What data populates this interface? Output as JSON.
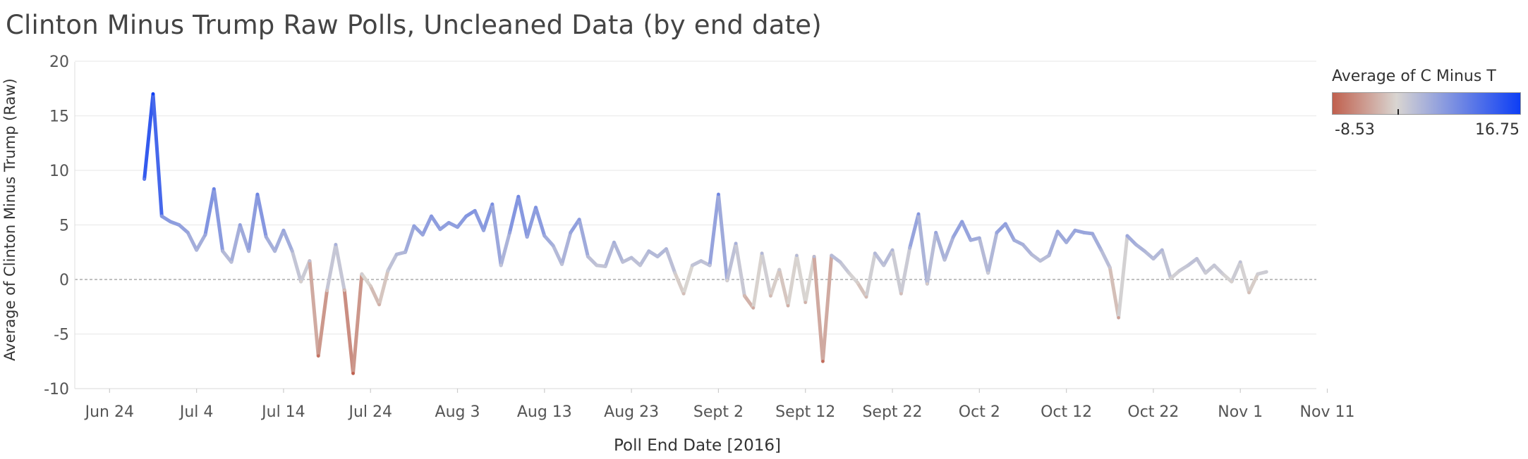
{
  "title": "Clinton Minus Trump Raw Polls, Uncleaned Data (by end date)",
  "legend": {
    "title": "Average of C Minus T",
    "min_label": "-8.53",
    "max_label": "16.75",
    "colors": {
      "negative": "#c0604e",
      "neutral": "#d9d5d1",
      "positive": "#0d3ef5"
    }
  },
  "chart_data": {
    "type": "line",
    "title": "Clinton Minus Trump Raw Polls, Uncleaned Data (by end date)",
    "xlabel": "Poll End Date [2016]",
    "ylabel": "Average of Clinton Minus Trump (Raw)",
    "x_tick_labels": [
      "Jun 24",
      "Jul 4",
      "Jul 14",
      "Jul 24",
      "Aug 3",
      "Aug 13",
      "Aug 23",
      "Sept 2",
      "Sept 12",
      "Sept 22",
      "Oct 2",
      "Oct 12",
      "Oct 22",
      "Nov 1",
      "Nov 11"
    ],
    "y_tick_labels": [
      "-10",
      "-5",
      "0",
      "5",
      "10",
      "15",
      "20"
    ],
    "y_ticks": [
      -10,
      -5,
      0,
      5,
      10,
      15,
      20
    ],
    "ylim": [
      -10,
      20
    ],
    "xlim": [
      "2016-06-20",
      "2016-11-13"
    ],
    "zero_line": true,
    "grid": "horizontal",
    "color_range": [
      -8.53,
      16.75
    ],
    "series": [
      {
        "points": [
          [
            "2016-06-28",
            9.2
          ],
          [
            "2016-06-29",
            17.0
          ],
          [
            "2016-06-30",
            5.8
          ],
          [
            "2016-07-01",
            5.3
          ],
          [
            "2016-07-02",
            5.0
          ],
          [
            "2016-07-03",
            4.3
          ],
          [
            "2016-07-04",
            2.7
          ],
          [
            "2016-07-05",
            4.1
          ],
          [
            "2016-07-06",
            8.3
          ],
          [
            "2016-07-07",
            2.6
          ],
          [
            "2016-07-08",
            1.6
          ],
          [
            "2016-07-09",
            5.0
          ],
          [
            "2016-07-10",
            2.6
          ],
          [
            "2016-07-11",
            7.8
          ],
          [
            "2016-07-12",
            3.9
          ],
          [
            "2016-07-13",
            2.6
          ],
          [
            "2016-07-14",
            4.5
          ],
          [
            "2016-07-15",
            2.6
          ],
          [
            "2016-07-16",
            -0.2
          ],
          [
            "2016-07-17",
            1.7
          ],
          [
            "2016-07-18",
            -7.0
          ],
          [
            "2016-07-19",
            -1.0
          ],
          [
            "2016-07-20",
            3.2
          ],
          [
            "2016-07-21",
            -1.0
          ],
          [
            "2016-07-22",
            -8.6
          ],
          [
            "2016-07-23",
            0.5
          ],
          [
            "2016-07-24",
            -0.6
          ],
          [
            "2016-07-25",
            -2.3
          ],
          [
            "2016-07-26",
            0.8
          ],
          [
            "2016-07-27",
            2.3
          ],
          [
            "2016-07-28",
            2.5
          ],
          [
            "2016-07-29",
            4.9
          ],
          [
            "2016-07-30",
            4.1
          ],
          [
            "2016-07-31",
            5.8
          ],
          [
            "2016-08-01",
            4.6
          ],
          [
            "2016-08-02",
            5.2
          ],
          [
            "2016-08-03",
            4.8
          ],
          [
            "2016-08-04",
            5.8
          ],
          [
            "2016-08-05",
            6.3
          ],
          [
            "2016-08-06",
            4.5
          ],
          [
            "2016-08-07",
            6.9
          ],
          [
            "2016-08-08",
            1.3
          ],
          [
            "2016-08-09",
            4.3
          ],
          [
            "2016-08-10",
            7.6
          ],
          [
            "2016-08-11",
            3.9
          ],
          [
            "2016-08-12",
            6.6
          ],
          [
            "2016-08-13",
            4.0
          ],
          [
            "2016-08-14",
            3.1
          ],
          [
            "2016-08-15",
            1.4
          ],
          [
            "2016-08-16",
            4.3
          ],
          [
            "2016-08-17",
            5.5
          ],
          [
            "2016-08-18",
            2.1
          ],
          [
            "2016-08-19",
            1.3
          ],
          [
            "2016-08-20",
            1.2
          ],
          [
            "2016-08-21",
            3.4
          ],
          [
            "2016-08-22",
            1.6
          ],
          [
            "2016-08-23",
            2.0
          ],
          [
            "2016-08-24",
            1.3
          ],
          [
            "2016-08-25",
            2.6
          ],
          [
            "2016-08-26",
            2.1
          ],
          [
            "2016-08-27",
            2.8
          ],
          [
            "2016-08-28",
            0.6
          ],
          [
            "2016-08-29",
            -1.3
          ],
          [
            "2016-08-30",
            1.3
          ],
          [
            "2016-08-31",
            1.7
          ],
          [
            "2016-09-01",
            1.3
          ],
          [
            "2016-09-02",
            7.8
          ],
          [
            "2016-09-03",
            -0.1
          ],
          [
            "2016-09-04",
            3.3
          ],
          [
            "2016-09-05",
            -1.5
          ],
          [
            "2016-09-06",
            -2.6
          ],
          [
            "2016-09-07",
            2.4
          ],
          [
            "2016-09-08",
            -1.5
          ],
          [
            "2016-09-09",
            0.9
          ],
          [
            "2016-09-10",
            -2.4
          ],
          [
            "2016-09-11",
            2.2
          ],
          [
            "2016-09-12",
            -2.1
          ],
          [
            "2016-09-13",
            2.1
          ],
          [
            "2016-09-14",
            -7.5
          ],
          [
            "2016-09-15",
            2.2
          ],
          [
            "2016-09-16",
            1.6
          ],
          [
            "2016-09-17",
            0.6
          ],
          [
            "2016-09-18",
            -0.3
          ],
          [
            "2016-09-19",
            -1.6
          ],
          [
            "2016-09-20",
            2.4
          ],
          [
            "2016-09-21",
            1.3
          ],
          [
            "2016-09-22",
            2.7
          ],
          [
            "2016-09-23",
            -1.3
          ],
          [
            "2016-09-24",
            2.9
          ],
          [
            "2016-09-25",
            6.0
          ],
          [
            "2016-09-26",
            -0.4
          ],
          [
            "2016-09-27",
            4.3
          ],
          [
            "2016-09-28",
            1.8
          ],
          [
            "2016-09-29",
            3.9
          ],
          [
            "2016-09-30",
            5.3
          ],
          [
            "2016-10-01",
            3.6
          ],
          [
            "2016-10-02",
            3.8
          ],
          [
            "2016-10-03",
            0.6
          ],
          [
            "2016-10-04",
            4.3
          ],
          [
            "2016-10-05",
            5.1
          ],
          [
            "2016-10-06",
            3.6
          ],
          [
            "2016-10-07",
            3.2
          ],
          [
            "2016-10-08",
            2.3
          ],
          [
            "2016-10-09",
            1.7
          ],
          [
            "2016-10-10",
            2.2
          ],
          [
            "2016-10-11",
            4.4
          ],
          [
            "2016-10-12",
            3.4
          ],
          [
            "2016-10-13",
            4.5
          ],
          [
            "2016-10-14",
            4.3
          ],
          [
            "2016-10-15",
            4.2
          ],
          [
            "2016-10-16",
            2.7
          ],
          [
            "2016-10-17",
            1.1
          ],
          [
            "2016-10-18",
            -3.5
          ],
          [
            "2016-10-19",
            4.0
          ],
          [
            "2016-10-20",
            3.2
          ],
          [
            "2016-10-21",
            2.6
          ],
          [
            "2016-10-22",
            1.9
          ],
          [
            "2016-10-23",
            2.7
          ],
          [
            "2016-10-24",
            0.1
          ],
          [
            "2016-10-25",
            0.8
          ],
          [
            "2016-10-26",
            1.3
          ],
          [
            "2016-10-27",
            1.9
          ],
          [
            "2016-10-28",
            0.6
          ],
          [
            "2016-10-29",
            1.3
          ],
          [
            "2016-10-30",
            0.5
          ],
          [
            "2016-10-31",
            -0.2
          ],
          [
            "2016-11-01",
            1.6
          ],
          [
            "2016-11-02",
            -1.2
          ],
          [
            "2016-11-03",
            0.5
          ],
          [
            "2016-11-04",
            0.7
          ]
        ]
      }
    ]
  }
}
